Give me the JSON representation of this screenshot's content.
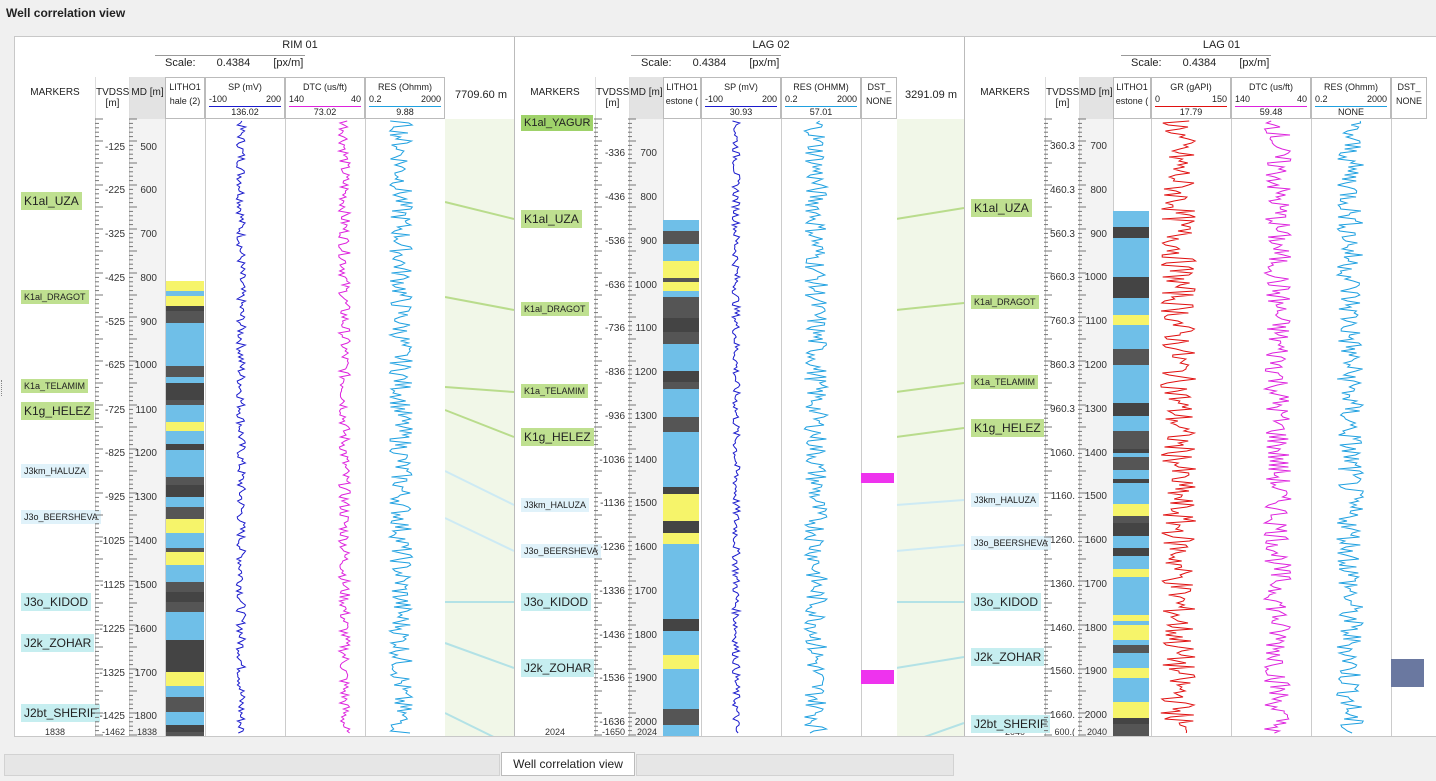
{
  "window": {
    "title": "Well correlation view"
  },
  "wells": [
    {
      "name": "RIM 01",
      "scale_label": "Scale:",
      "scale_value": "0.4384",
      "scale_unit": "[px/m]",
      "markers_label": "MARKERS",
      "tvdss_label": "TVDSS [m]",
      "md_label": "MD [m]",
      "tracks": [
        {
          "name": "LITHO1",
          "value": "hale (2)"
        },
        {
          "name": "SP (mV)",
          "min": "-100",
          "max": "200",
          "value": "136.02",
          "color": "#1a1acc"
        },
        {
          "name": "DTC (us/ft)",
          "min": "140",
          "max": "40",
          "value": "73.02",
          "color": "#dd22dd"
        },
        {
          "name": "RES (Ohmm)",
          "min": "0.2",
          "max": "2000",
          "value": "9.88",
          "color": "#1fa0e0"
        }
      ],
      "tvdss_ticks": [
        "-125",
        "-225",
        "-325",
        "-425",
        "-525",
        "-625",
        "-725",
        "-825",
        "-925",
        "-1025",
        "-1125",
        "-1225",
        "-1325",
        "-1425",
        "-1462"
      ],
      "md_ticks": [
        "500",
        "600",
        "700",
        "800",
        "900",
        "1000",
        "1100",
        "1200",
        "1300",
        "1400",
        "1500",
        "1600",
        "1700",
        "1800",
        "1838"
      ],
      "md_bottom": "1838",
      "markers": [
        "K1al_UZA",
        "K1al_DRAGOT",
        "K1a_TELAMIM",
        "K1g_HELEZ",
        "J3km_HALUZA",
        "J3o_BEERSHEVA",
        "J3o_KIDOD",
        "J2k_ZOHAR",
        "J2bt_SHERIF"
      ]
    },
    {
      "name": "LAG 02",
      "scale_label": "Scale:",
      "scale_value": "0.4384",
      "scale_unit": "[px/m]",
      "markers_label": "MARKERS",
      "tvdss_label": "TVDSS [m]",
      "md_label": "MD [m]",
      "tracks": [
        {
          "name": "LITHO1",
          "value": "estone ("
        },
        {
          "name": "SP (mV)",
          "min": "-100",
          "max": "200",
          "value": "30.93",
          "color": "#1a1acc"
        },
        {
          "name": "RES (OHMM)",
          "min": "0.2",
          "max": "2000",
          "value": "57.01",
          "color": "#1fa0e0"
        },
        {
          "name": "DST_",
          "value": "NONE"
        }
      ],
      "tvdss_ticks": [
        "-336",
        "-436",
        "-536",
        "-636",
        "-736",
        "-836",
        "-936",
        "-1036",
        "-1136",
        "-1236",
        "-1336",
        "-1436",
        "-1536",
        "-1636",
        "-1650"
      ],
      "md_ticks": [
        "700",
        "800",
        "900",
        "1000",
        "1100",
        "1200",
        "1300",
        "1400",
        "1500",
        "1600",
        "1700",
        "1800",
        "1900",
        "2000",
        "2024"
      ],
      "md_bottom": "2024",
      "markers": [
        "K1al_YAGUR",
        "K1al_UZA",
        "K1al_DRAGOT",
        "K1a_TELAMIM",
        "K1g_HELEZ",
        "J3km_HALUZA",
        "J3o_BEERSHEVA",
        "J3o_KIDOD",
        "J2k_ZOHAR"
      ]
    },
    {
      "name": "LAG 01",
      "scale_label": "Scale:",
      "scale_value": "0.4384",
      "scale_unit": "[px/m]",
      "markers_label": "MARKERS",
      "tvdss_label": "TVDSS [m]",
      "md_label": "MD [m]",
      "tracks": [
        {
          "name": "LITHO1",
          "value": "estone ("
        },
        {
          "name": "GR (gAPI)",
          "min": "0",
          "max": "150",
          "value": "17.79",
          "color": "#e01010"
        },
        {
          "name": "DTC (us/ft)",
          "min": "140",
          "max": "40",
          "value": "59.48",
          "color": "#dd22dd"
        },
        {
          "name": "RES (Ohmm)",
          "min": "0.2",
          "max": "2000",
          "value": "NONE",
          "color": "#1fa0e0"
        },
        {
          "name": "DST_",
          "value": "NONE"
        }
      ],
      "tvdss_ticks": [
        "360.3",
        "460.3",
        "560.3",
        "660.3",
        "760.3",
        "860.3",
        "960.3",
        "1060.",
        "1160.",
        "1260.",
        "1360.",
        "1460.",
        "1560.",
        "1660.",
        "600.("
      ],
      "md_ticks": [
        "700",
        "800",
        "900",
        "1000",
        "1100",
        "1200",
        "1300",
        "1400",
        "1500",
        "1600",
        "1700",
        "1800",
        "1900",
        "2000",
        "2040"
      ],
      "md_bottom": "2040",
      "markers": [
        "K1al_UZA",
        "K1al_DRAGOT",
        "K1a_TELAMIM",
        "K1g_HELEZ",
        "J3km_HALUZA",
        "J3o_BEERSHEVA",
        "J3o_KIDOD",
        "J2k_ZOHAR",
        "J2bt_SHERIF"
      ]
    }
  ],
  "distances": [
    "7709.60 m",
    "3291.09 m"
  ],
  "tabs": {
    "active": "Well correlation view"
  },
  "colors": {
    "marker_green": "#bfe090",
    "marker_cyan": "#c6eef0",
    "marker_lightblue": "#e0f2fa",
    "litho_blue": "#6fbfe8",
    "litho_yellow": "#f6f46a",
    "litho_dark": "#555555"
  }
}
